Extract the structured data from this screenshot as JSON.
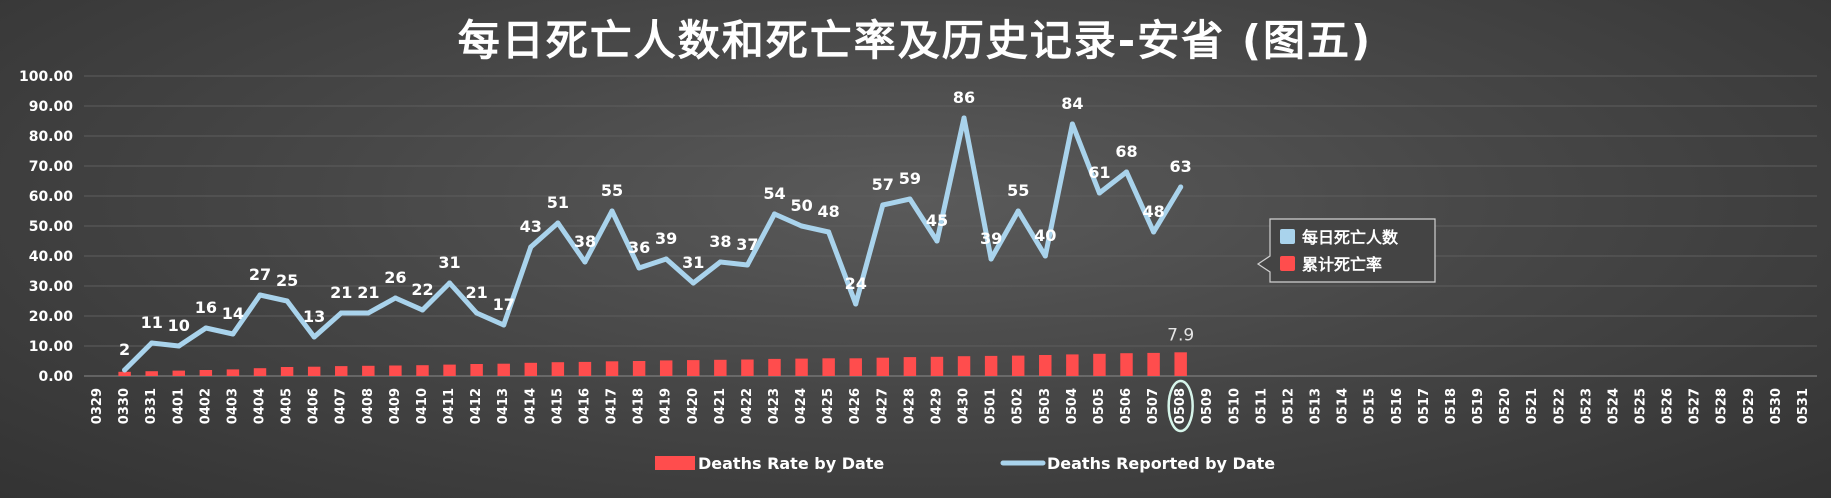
{
  "chart_data": {
    "type": "bar+line",
    "title": "每日死亡人数和死亡率及历史记录-安省 (图五)",
    "ylim": [
      0,
      100
    ],
    "y_ticks": [
      "0.00",
      "10.00",
      "20.00",
      "30.00",
      "40.00",
      "50.00",
      "60.00",
      "70.00",
      "80.00",
      "90.00",
      "100.00"
    ],
    "categories": [
      "0329",
      "0330",
      "0331",
      "0401",
      "0402",
      "0403",
      "0404",
      "0405",
      "0406",
      "0407",
      "0408",
      "0409",
      "0410",
      "0411",
      "0412",
      "0413",
      "0414",
      "0415",
      "0416",
      "0417",
      "0418",
      "0419",
      "0420",
      "0421",
      "0422",
      "0423",
      "0424",
      "0425",
      "0426",
      "0427",
      "0428",
      "0429",
      "0430",
      "0501",
      "0502",
      "0503",
      "0504",
      "0505",
      "0506",
      "0507",
      "0508",
      "0509",
      "0510",
      "0511",
      "0512",
      "0513",
      "0514",
      "0515",
      "0516",
      "0517",
      "0518",
      "0519",
      "0520",
      "0521",
      "0522",
      "0523",
      "0524",
      "0525",
      "0526",
      "0527",
      "0528",
      "0529",
      "0530",
      "0531"
    ],
    "highlighted_category": "0508",
    "grid": true,
    "series": [
      {
        "name": "Deaths Reported by Date",
        "legend_name": "每日死亡人数",
        "kind": "line",
        "color": "#a9d3ec",
        "values": [
          null,
          2,
          11,
          10,
          16,
          14,
          27,
          25,
          13,
          21,
          21,
          26,
          22,
          31,
          21,
          17,
          43,
          51,
          38,
          55,
          36,
          39,
          31,
          38,
          37,
          54,
          50,
          48,
          24,
          57,
          59,
          45,
          86,
          39,
          55,
          40,
          84,
          61,
          68,
          48,
          63,
          null,
          null,
          null,
          null,
          null,
          null,
          null,
          null,
          null,
          null,
          null,
          null,
          null,
          null,
          null,
          null,
          null,
          null,
          null,
          null,
          null,
          null,
          null
        ],
        "labels": [
          null,
          "2",
          "11",
          "10",
          "16",
          "14",
          "27",
          "25",
          "13",
          "21",
          "21",
          "26",
          "22",
          "31",
          "21",
          "17",
          "43",
          "51",
          "38",
          "55",
          "36",
          "39",
          "31",
          "38",
          "37",
          "54",
          "50",
          "48",
          "24",
          "57",
          "59",
          "45",
          "86",
          "39",
          "55",
          "40",
          "84",
          "61",
          "68",
          "48",
          "63",
          null,
          null,
          null,
          null,
          null,
          null,
          null,
          null,
          null,
          null,
          null,
          null,
          null,
          null,
          null,
          null,
          null,
          null,
          null,
          null,
          null,
          null,
          null
        ]
      },
      {
        "name": "Deaths Rate by Date",
        "legend_name": "累计死亡率",
        "kind": "bar",
        "color": "#ff4d4d",
        "values": [
          null,
          1.4,
          1.6,
          1.8,
          2.0,
          2.2,
          2.6,
          3.0,
          3.1,
          3.3,
          3.4,
          3.5,
          3.6,
          3.8,
          4.0,
          4.1,
          4.4,
          4.6,
          4.7,
          4.9,
          5.0,
          5.2,
          5.3,
          5.4,
          5.5,
          5.7,
          5.8,
          5.9,
          5.9,
          6.1,
          6.3,
          6.4,
          6.6,
          6.7,
          6.8,
          7.0,
          7.2,
          7.4,
          7.6,
          7.7,
          7.9,
          null,
          null,
          null,
          null,
          null,
          null,
          null,
          null,
          null,
          null,
          null,
          null,
          null,
          null,
          null,
          null,
          null,
          null,
          null,
          null,
          null,
          null,
          null
        ],
        "last_label": "7.9"
      }
    ],
    "legend_bottom": [
      "Deaths Rate by Date",
      "Deaths Reported by Date"
    ],
    "legend_box": [
      "每日死亡人数",
      "累计死亡率"
    ],
    "legend_placement": "right-middle",
    "colors": {
      "line": "#a9d3ec",
      "bar": "#ff4d4d",
      "grid": "#5e5e5e",
      "text": "#ffffff"
    }
  }
}
